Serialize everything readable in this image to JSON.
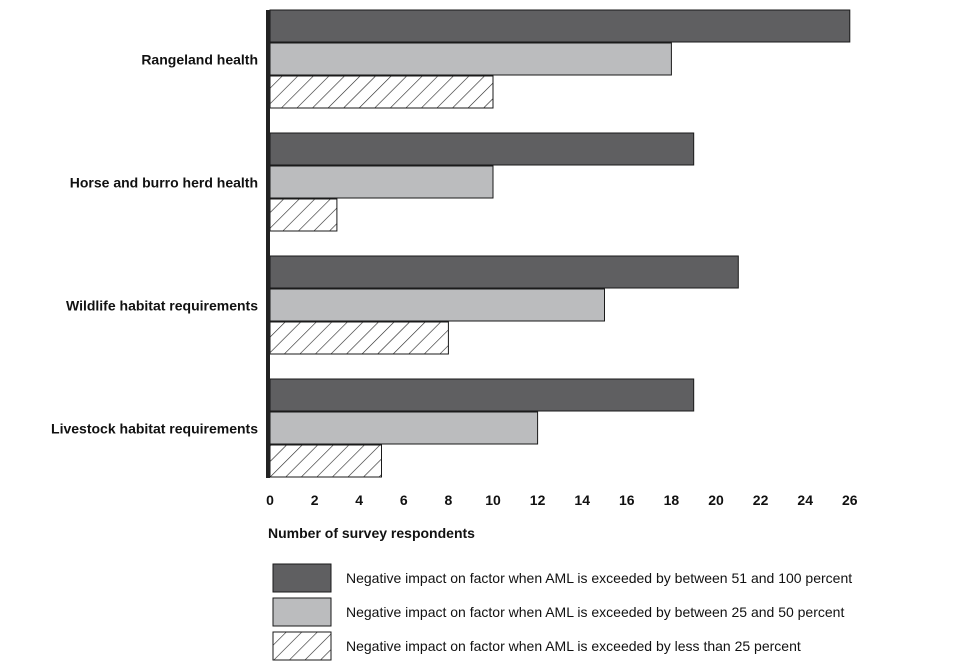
{
  "chart_data": {
    "type": "bar",
    "orientation": "horizontal",
    "categories": [
      "Rangeland health",
      "Horse and burro herd health",
      "Wildlife habitat requirements",
      "Livestock habitat requirements"
    ],
    "series": [
      {
        "name": "Negative impact on factor when AML is exceeded by between 51 and 100 percent",
        "values": [
          26,
          19,
          21,
          19
        ],
        "color": "#5f5f61",
        "pattern": "solid"
      },
      {
        "name": "Negative impact on factor when AML is exceeded by between 25 and 50 percent",
        "values": [
          18,
          10,
          15,
          12
        ],
        "color": "#bbbcbe",
        "pattern": "solid"
      },
      {
        "name": "Negative impact on factor when AML is exceeded by less than 25 percent",
        "values": [
          10,
          3,
          8,
          5
        ],
        "color": "#ffffff",
        "pattern": "diagonal-hatch"
      }
    ],
    "xlabel": "Number of survey respondents",
    "ylabel": "",
    "xlim": [
      0,
      26
    ],
    "xticks": [
      "0",
      "2",
      "4",
      "6",
      "8",
      "10",
      "12",
      "14",
      "16",
      "18",
      "20",
      "22",
      "24",
      "26"
    ],
    "grid": false,
    "legend_position": "bottom"
  }
}
